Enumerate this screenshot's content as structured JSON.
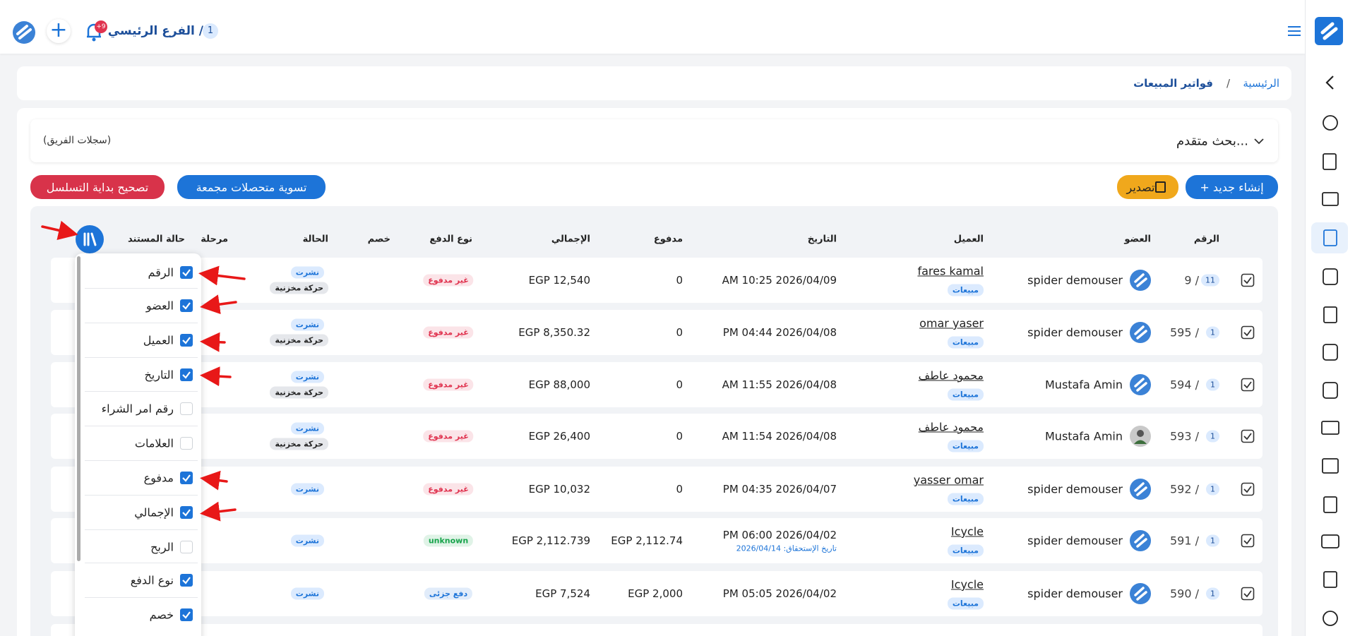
{
  "topbar": {
    "branch_badge": "1",
    "branch": "الفرع الرئيسي /",
    "notification_badge": "+9"
  },
  "breadcrumb": {
    "home": "الرئيسية",
    "separator": "/",
    "current": "فواتير المبيعات"
  },
  "search": {
    "title": "بحث متقدم...",
    "scope": "(سجلات الفريق)"
  },
  "actions": {
    "create": "+ إنشاء جديد",
    "export": "تصدير",
    "collections": "تسوية متحصلات مجمعة",
    "fix_sequence": "تصحيح بداية التسلسل"
  },
  "table": {
    "columns": [
      "الرقم",
      "العضو",
      "العميل",
      "التاريخ",
      "مدفوع",
      "الإجمالي",
      "نوع الدفع",
      "خصم",
      "الحالة",
      "مرحلة",
      "حالة المستند"
    ],
    "rows": [
      {
        "number": "9 /",
        "badge": "11",
        "member": "spider demouser",
        "avatar": "logo",
        "client": "fares kamal",
        "client_tag": "مبيعات",
        "date": "AM 10:25 2026/04/09",
        "paid": "0",
        "total": "EGP 12,540",
        "payment_type": "غير مدفوع",
        "payment_color": "#e0334f",
        "statuses": [
          "نشرت",
          "حركة مخزنية"
        ]
      },
      {
        "number": "595 /",
        "badge": "1",
        "member": "spider demouser",
        "avatar": "logo",
        "client": "omar yaser",
        "client_tag": "مبيعات",
        "date": "PM 04:44 2026/04/08",
        "paid": "0",
        "total": "EGP 8,350.32",
        "payment_type": "غير مدفوع",
        "payment_color": "#e0334f",
        "statuses": [
          "نشرت",
          "حركة مخزنية"
        ]
      },
      {
        "number": "594 /",
        "badge": "1",
        "member": "Mustafa Amin",
        "avatar": "logo",
        "client": "محمود عاطف",
        "client_tag": "مبيعات",
        "date": "AM 11:55 2026/04/08",
        "paid": "0",
        "total": "EGP 88,000",
        "payment_type": "غير مدفوع",
        "payment_color": "#e0334f",
        "statuses": [
          "نشرت",
          "حركة مخزنية"
        ]
      },
      {
        "number": "593 /",
        "badge": "1",
        "member": "Mustafa Amin",
        "avatar": "photo",
        "client": "محمود عاطف",
        "client_tag": "مبيعات",
        "date": "AM 11:54 2026/04/08",
        "paid": "0",
        "total": "EGP 26,400",
        "payment_type": "غير مدفوع",
        "payment_color": "#e0334f",
        "statuses": [
          "نشرت",
          "حركة مخزنية"
        ]
      },
      {
        "number": "592 /",
        "badge": "1",
        "member": "spider demouser",
        "avatar": "logo",
        "client": "yasser omar",
        "client_tag": "مبيعات",
        "date": "PM 04:35 2026/04/07",
        "paid": "0",
        "total": "EGP 10,032",
        "payment_type": "غير مدفوع",
        "payment_color": "#e0334f",
        "statuses": [
          "نشرت"
        ]
      },
      {
        "number": "591 /",
        "badge": "1",
        "member": "spider demouser",
        "avatar": "logo",
        "client": "Icycle",
        "client_tag": "مبيعات",
        "date": "PM 06:00 2026/04/02",
        "due": "تاريخ الإستحقاق: 2026/04/14",
        "paid": "EGP 2,112.74",
        "total": "EGP 2,112.739",
        "payment_type": "unknown",
        "payment_color": "#16a34a",
        "statuses": [
          "نشرت"
        ]
      },
      {
        "number": "590 /",
        "badge": "1",
        "member": "spider demouser",
        "avatar": "logo",
        "client": "Icycle",
        "client_tag": "مبيعات",
        "date": "PM 05:05 2026/04/02",
        "paid": "EGP 2,000",
        "total": "EGP 7,524",
        "payment_type": "دفع جزئى",
        "payment_color": "#1d74d8",
        "statuses": [
          "نشرت"
        ]
      }
    ]
  },
  "column_menu": [
    {
      "label": "الرقم",
      "checked": true
    },
    {
      "label": "العضو",
      "checked": true
    },
    {
      "label": "العميل",
      "checked": true
    },
    {
      "label": "التاريخ",
      "checked": true
    },
    {
      "label": "رقم امر الشراء",
      "checked": false
    },
    {
      "label": "العلامات",
      "checked": false
    },
    {
      "label": "مدفوع",
      "checked": true
    },
    {
      "label": "الإجمالي",
      "checked": true
    },
    {
      "label": "الربح",
      "checked": false
    },
    {
      "label": "نوع الدفع",
      "checked": true
    },
    {
      "label": "خصم",
      "checked": true
    }
  ]
}
